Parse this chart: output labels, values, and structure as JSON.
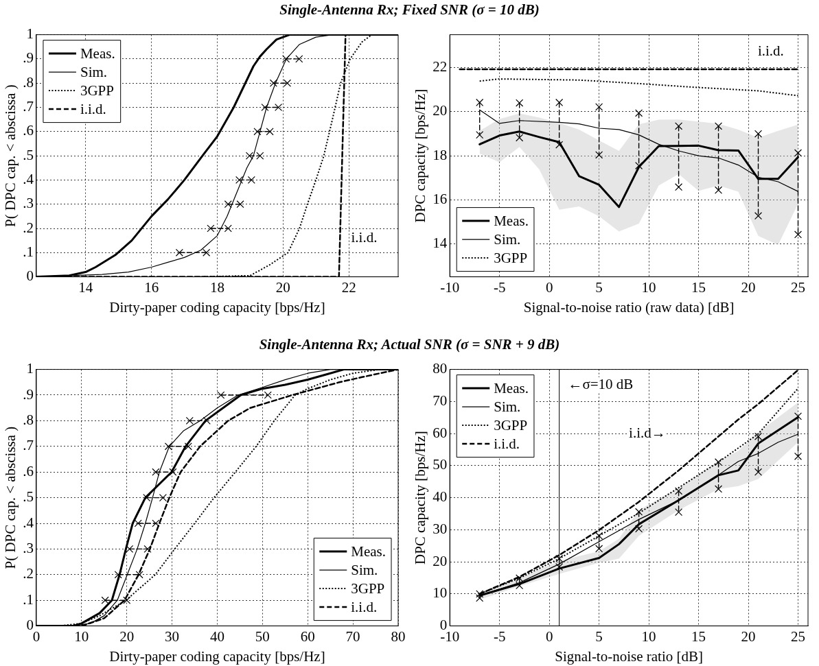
{
  "chart_data": [
    {
      "type": "line",
      "title": "Single-Antenna Rx; Fixed SNR (σ = 10 dB)",
      "xlabel": "Dirty-paper coding capacity [bps/Hz]",
      "ylabel": "P( DPC cap. < abscissa )",
      "xlim": [
        12.5,
        23.5
      ],
      "xticks": [
        14,
        16,
        18,
        20,
        22
      ],
      "ylim": [
        0,
        1
      ],
      "yticks": [
        0,
        {
          "value": 0.1,
          "label": ".1"
        },
        {
          "value": 0.2,
          "label": ".2"
        },
        {
          "value": 0.3,
          "label": ".3"
        },
        {
          "value": 0.4,
          "label": ".4"
        },
        {
          "value": 0.5,
          "label": ".5"
        },
        {
          "value": 0.6,
          "label": ".6"
        },
        {
          "value": 0.7,
          "label": ".7"
        },
        {
          "value": 0.8,
          "label": ".8"
        },
        {
          "value": 0.9,
          "label": ".9"
        },
        1
      ],
      "grid": true,
      "legend": "top left",
      "annotations": [
        "i.i.d."
      ],
      "series": [
        {
          "name": "Meas.",
          "color": "#000000",
          "line_style": "solid",
          "x": [
            12.5,
            13.5,
            14,
            14.3,
            14.9,
            15.4,
            16,
            16.5,
            17,
            17.55,
            18,
            18.5,
            19.1,
            19.3,
            19.5,
            19.8,
            20.2,
            23.5
          ],
          "values": [
            0,
            0.005,
            0.02,
            0.04,
            0.09,
            0.15,
            0.25,
            0.32,
            0.4,
            0.5,
            0.58,
            0.7,
            0.87,
            0.91,
            0.94,
            0.98,
            1,
            1
          ]
        },
        {
          "name": "Sim.",
          "color": "#000000",
          "line_style": "solid",
          "x": [
            12.5,
            14.5,
            15.3,
            16,
            16.5,
            17,
            17.5,
            18,
            18.3,
            18.6,
            18.9,
            19.1,
            19.3,
            19.5,
            19.77,
            20.1,
            20.5,
            21,
            21.5,
            23.5
          ],
          "values": [
            0,
            0.01,
            0.02,
            0.04,
            0.06,
            0.08,
            0.11,
            0.17,
            0.25,
            0.35,
            0.45,
            0.5,
            0.6,
            0.7,
            0.8,
            0.9,
            0.96,
            0.99,
            1,
            1
          ]
        },
        {
          "name": "3GPP",
          "color": "#000000",
          "line_style": "dotted",
          "x": [
            17.5,
            19,
            19.6,
            20.15,
            20.5,
            20.74,
            21,
            21.24,
            21.5,
            21.75,
            22.04,
            22.4,
            22.7,
            23.5
          ],
          "values": [
            0,
            0.005,
            0.05,
            0.1,
            0.2,
            0.3,
            0.4,
            0.5,
            0.65,
            0.8,
            0.9,
            0.97,
            1,
            1
          ]
        },
        {
          "name": "i.i.d.",
          "color": "#000000",
          "line_style": "dashed",
          "x": [
            12.5,
            21.7,
            21.9,
            23.5
          ],
          "values": [
            0,
            0,
            1,
            1
          ]
        },
        {
          "color": "#000000",
          "line_style": "dashed",
          "marker": "cross",
          "x": [
            16.85,
            17.67
          ],
          "values": [
            0.1,
            0.1
          ]
        },
        {
          "color": "#000000",
          "line_style": "dashed",
          "marker": "cross",
          "x": [
            17.8,
            18.33
          ],
          "values": [
            0.2,
            0.2
          ]
        },
        {
          "color": "#000000",
          "line_style": "dashed",
          "marker": "cross",
          "x": [
            18.33,
            18.7
          ],
          "values": [
            0.3,
            0.3
          ]
        },
        {
          "color": "#000000",
          "line_style": "dashed",
          "marker": "cross",
          "x": [
            18.67,
            19.04
          ],
          "values": [
            0.4,
            0.4
          ]
        },
        {
          "color": "#000000",
          "line_style": "dashed",
          "marker": "cross",
          "x": [
            18.98,
            19.3
          ],
          "values": [
            0.5,
            0.5
          ]
        },
        {
          "color": "#000000",
          "line_style": "dashed",
          "marker": "cross",
          "x": [
            19.22,
            19.6
          ],
          "values": [
            0.6,
            0.6
          ]
        },
        {
          "color": "#000000",
          "line_style": "dashed",
          "marker": "cross",
          "x": [
            19.45,
            19.86
          ],
          "values": [
            0.7,
            0.7
          ]
        },
        {
          "color": "#000000",
          "line_style": "dashed",
          "marker": "cross",
          "x": [
            19.71,
            20.13
          ],
          "values": [
            0.8,
            0.8
          ]
        },
        {
          "color": "#000000",
          "line_style": "dashed",
          "marker": "cross",
          "x": [
            20.09,
            20.49
          ],
          "values": [
            0.9,
            0.9
          ]
        }
      ]
    },
    {
      "type": "line",
      "xlabel": "Signal-to-noise ratio (raw data) [dB]",
      "ylabel": "DPC capacity [bps/Hz]",
      "xlim": [
        -10,
        26
      ],
      "xticks": [
        -10,
        -5,
        0,
        5,
        10,
        15,
        20,
        25
      ],
      "ylim": [
        12.5,
        23.5
      ],
      "yticks": [
        14,
        16,
        18,
        20,
        22
      ],
      "grid": true,
      "legend": "bottom left",
      "annotations": [
        "i.i.d."
      ],
      "series": [
        {
          "name": "Meas.",
          "color": "#000000",
          "line_style": "solid",
          "x": [
            -7,
            -5,
            -3,
            -1,
            1,
            3,
            5,
            7,
            9,
            11,
            13,
            15,
            17,
            19,
            21,
            23,
            25
          ],
          "values": [
            18.52,
            18.92,
            19.1,
            18.85,
            18.62,
            17.07,
            16.68,
            15.67,
            17.49,
            18.44,
            18.45,
            18.46,
            18.25,
            18.24,
            16.95,
            16.95,
            17.94
          ],
          "upper": [
            19.13,
            19.67,
            19.92,
            19.73,
            19.49,
            19.19,
            18.7,
            18.22,
            19.43,
            19.64,
            19.65,
            19.55,
            19.45,
            19.19,
            18.82,
            19.13,
            19.41
          ],
          "lower": [
            18.1,
            17.71,
            18.4,
            17.37,
            15.55,
            15.7,
            15.25,
            14.56,
            14.92,
            16.65,
            17.17,
            16.41,
            16.65,
            16.37,
            14.36,
            13.95,
            15.82
          ]
        },
        {
          "name": "Sim.",
          "color": "#000000",
          "line_style": "solid",
          "x": [
            -7,
            -5,
            -3,
            1,
            3,
            5,
            7,
            9,
            11,
            13,
            15,
            17,
            19,
            21,
            23,
            25
          ],
          "values": [
            20.08,
            19.47,
            19.6,
            19.52,
            19.45,
            19.25,
            19.19,
            18.95,
            18.52,
            18.22,
            18.0,
            17.9,
            17.58,
            17.03,
            16.82,
            16.38
          ]
        },
        {
          "name": "3GPP",
          "color": "#000000",
          "line_style": "dotted",
          "x": [
            -7,
            -5,
            3,
            9,
            15,
            21,
            25
          ],
          "values": [
            21.39,
            21.49,
            21.44,
            21.28,
            21.1,
            20.95,
            20.73
          ]
        },
        {
          "color": "#000000",
          "line_style": "dashed",
          "x": [
            -9,
            25
          ],
          "values": [
            21.93,
            21.93
          ]
        },
        {
          "color": "#000000",
          "line_style": "dashed",
          "marker": "cross",
          "x": [
            -7,
            -7
          ],
          "values": [
            20.42,
            18.95
          ]
        },
        {
          "color": "#000000",
          "line_style": "dashed",
          "marker": "cross",
          "x": [
            -3,
            -3
          ],
          "values": [
            20.4,
            18.82
          ]
        },
        {
          "color": "#000000",
          "line_style": "dashed",
          "marker": "cross",
          "x": [
            1,
            1
          ],
          "values": [
            20.42,
            18.5
          ]
        },
        {
          "color": "#000000",
          "line_style": "dashed",
          "marker": "cross",
          "x": [
            5,
            5
          ],
          "values": [
            20.22,
            18.04
          ]
        },
        {
          "color": "#000000",
          "line_style": "dashed",
          "marker": "cross",
          "x": [
            9,
            9
          ],
          "values": [
            19.94,
            17.55
          ]
        },
        {
          "color": "#000000",
          "line_style": "dashed",
          "marker": "cross",
          "x": [
            13,
            13
          ],
          "values": [
            19.35,
            16.58
          ]
        },
        {
          "color": "#000000",
          "line_style": "dashed",
          "marker": "cross",
          "x": [
            17,
            17
          ],
          "values": [
            19.35,
            16.44
          ]
        },
        {
          "color": "#000000",
          "line_style": "dashed",
          "marker": "cross",
          "x": [
            21,
            21
          ],
          "values": [
            19.0,
            15.27
          ]
        },
        {
          "color": "#000000",
          "line_style": "dashed",
          "marker": "cross",
          "x": [
            25,
            25
          ],
          "values": [
            18.13,
            14.42
          ]
        }
      ]
    },
    {
      "type": "line",
      "title": "Single-Antenna Rx; Actual SNR (σ = SNR + 9 dB)",
      "xlabel": "Dirty-paper coding capacity [bps/Hz]",
      "ylabel": "P( DPC cap. < abscissa )",
      "xlim": [
        0,
        80
      ],
      "xticks": [
        0,
        10,
        20,
        30,
        40,
        50,
        60,
        70,
        80
      ],
      "ylim": [
        0,
        1
      ],
      "yticks": [
        0,
        {
          "value": 0.1,
          "label": ".1"
        },
        {
          "value": 0.2,
          "label": ".2"
        },
        {
          "value": 0.3,
          "label": ".3"
        },
        {
          "value": 0.4,
          "label": ".4"
        },
        {
          "value": 0.5,
          "label": ".5"
        },
        {
          "value": 0.6,
          "label": ".6"
        },
        {
          "value": 0.7,
          "label": ".7"
        },
        {
          "value": 0.8,
          "label": ".8"
        },
        {
          "value": 0.9,
          "label": ".9"
        },
        1
      ],
      "grid": true,
      "legend": "bottom right",
      "series": [
        {
          "name": "Meas.",
          "color": "#000000",
          "line_style": "solid",
          "x": [
            0,
            8,
            10,
            14,
            16.7,
            18.4,
            19.8,
            21.3,
            24.1,
            29.9,
            33,
            37.4,
            40.5,
            45.2,
            50,
            55,
            60,
            65,
            68,
            80
          ],
          "values": [
            0,
            0,
            0.01,
            0.05,
            0.1,
            0.2,
            0.3,
            0.4,
            0.5,
            0.6,
            0.7,
            0.8,
            0.84,
            0.9,
            0.925,
            0.94,
            0.96,
            0.985,
            1,
            1
          ]
        },
        {
          "name": "Sim.",
          "color": "#000000",
          "line_style": "solid",
          "x": [
            0,
            8,
            12,
            15,
            17.9,
            20.1,
            22.3,
            24.1,
            25.7,
            27.2,
            29.4,
            32.5,
            36.2,
            40,
            44.6,
            50,
            55,
            60,
            65,
            80
          ],
          "values": [
            0,
            0,
            0.01,
            0.04,
            0.1,
            0.2,
            0.3,
            0.4,
            0.5,
            0.6,
            0.7,
            0.76,
            0.8,
            0.85,
            0.9,
            0.93,
            0.96,
            0.985,
            1,
            1
          ]
        },
        {
          "name": "3GPP",
          "color": "#000000",
          "line_style": "dotted",
          "x": [
            0,
            5,
            10,
            14,
            19.8,
            26.3,
            30.6,
            35,
            39.3,
            44,
            48.6,
            52.6,
            57.2,
            60,
            65,
            70,
            76,
            80
          ],
          "values": [
            0,
            0,
            0.01,
            0.04,
            0.1,
            0.2,
            0.3,
            0.4,
            0.5,
            0.6,
            0.7,
            0.8,
            0.9,
            0.925,
            0.96,
            0.985,
            1,
            1
          ]
        },
        {
          "name": "i.i.d.",
          "color": "#000000",
          "line_style": "dashed",
          "x": [
            0,
            10,
            15,
            19.5,
            22.6,
            25.1,
            27.2,
            29.4,
            31.9,
            36.2,
            42.4,
            47.3,
            56.6,
            67,
            72,
            80
          ],
          "values": [
            0,
            0,
            0.03,
            0.1,
            0.2,
            0.3,
            0.4,
            0.5,
            0.6,
            0.7,
            0.8,
            0.85,
            0.9,
            0.95,
            0.97,
            1
          ]
        },
        {
          "color": "#000000",
          "line_style": "dashed",
          "marker": "cross",
          "x": [
            15.2,
            20.0
          ],
          "values": [
            0.1,
            0.1
          ]
        },
        {
          "color": "#000000",
          "line_style": "dashed",
          "marker": "cross",
          "x": [
            18.1,
            22.8
          ],
          "values": [
            0.2,
            0.2
          ]
        },
        {
          "color": "#000000",
          "line_style": "dashed",
          "marker": "cross",
          "x": [
            20.6,
            24.6
          ],
          "values": [
            0.3,
            0.3
          ]
        },
        {
          "color": "#000000",
          "line_style": "dashed",
          "marker": "cross",
          "x": [
            22.5,
            26.4
          ],
          "values": [
            0.4,
            0.4
          ]
        },
        {
          "color": "#000000",
          "line_style": "dashed",
          "marker": "cross",
          "x": [
            24.4,
            28.0
          ],
          "values": [
            0.5,
            0.5
          ]
        },
        {
          "color": "#000000",
          "line_style": "dashed",
          "marker": "cross",
          "x": [
            26.4,
            30.2
          ],
          "values": [
            0.6,
            0.6
          ]
        },
        {
          "color": "#000000",
          "line_style": "dashed",
          "marker": "cross",
          "x": [
            29.2,
            33.6
          ],
          "values": [
            0.7,
            0.7
          ]
        },
        {
          "color": "#000000",
          "line_style": "dashed",
          "marker": "cross",
          "x": [
            33.9,
            37.7
          ],
          "values": [
            0.8,
            0.8
          ]
        },
        {
          "color": "#000000",
          "line_style": "dashed",
          "marker": "cross",
          "x": [
            40.8,
            51.2
          ],
          "values": [
            0.9,
            0.9
          ]
        }
      ]
    },
    {
      "type": "line",
      "xlabel": "Signal-to-noise ratio [dB]",
      "ylabel": "DPC capacity [bps/Hz]",
      "xlim": [
        -10,
        26
      ],
      "xticks": [
        -10,
        -5,
        0,
        5,
        10,
        15,
        20,
        25
      ],
      "ylim": [
        0,
        80
      ],
      "yticks": [
        0,
        10,
        20,
        30,
        40,
        50,
        60,
        70,
        80
      ],
      "grid": true,
      "legend": "top left",
      "ref_lines": [
        {
          "axis": "x",
          "value": 1
        }
      ],
      "annotations": [
        "←σ=10 dB",
        "i.i.d→"
      ],
      "series": [
        {
          "name": "Meas.",
          "color": "#000000",
          "line_style": "solid",
          "x": [
            -7,
            -3,
            1,
            5,
            7,
            9,
            13,
            17,
            19,
            21,
            25
          ],
          "values": [
            9.5,
            13.1,
            17.9,
            21.2,
            25.5,
            31.7,
            39.2,
            47,
            48.5,
            56.9,
            65.1
          ],
          "upper": [
            10.4,
            14.9,
            20.3,
            23.3,
            27.2,
            36.1,
            43.1,
            51.5,
            54.6,
            60.4,
            69.7
          ],
          "lower": [
            8.2,
            12.4,
            16.2,
            19.7,
            21,
            28.1,
            36.1,
            42.7,
            43.6,
            45.8,
            57.3
          ]
        },
        {
          "name": "Sim.",
          "color": "#000000",
          "line_style": "solid",
          "x": [
            -7,
            -3,
            1,
            5,
            9,
            13,
            17,
            19,
            21,
            23,
            25
          ],
          "values": [
            9.5,
            13.5,
            19.3,
            26.3,
            33.2,
            39.2,
            47.1,
            51.3,
            53.8,
            57.3,
            59.8
          ]
        },
        {
          "name": "3GPP",
          "color": "#000000",
          "line_style": "dotted",
          "x": [
            -7,
            -3,
            1,
            5,
            9,
            13,
            17,
            21,
            25
          ],
          "values": [
            10,
            14.9,
            21,
            28.1,
            35.2,
            43.1,
            51.1,
            59.9,
            74.1
          ]
        },
        {
          "name": "i.i.d.",
          "color": "#000000",
          "line_style": "dashed",
          "x": [
            -7,
            -3,
            1,
            5,
            9,
            13,
            17,
            19,
            21,
            25
          ],
          "values": [
            10,
            15.3,
            22.1,
            29.9,
            38.7,
            48.5,
            59.1,
            64.4,
            69.2,
            79.8
          ]
        },
        {
          "color": "#000000",
          "line_style": "dashed",
          "marker": "cross",
          "x": [
            -7,
            -7
          ],
          "values": [
            10.0,
            8.7
          ]
        },
        {
          "color": "#000000",
          "line_style": "dashed",
          "marker": "cross",
          "x": [
            -3,
            -3
          ],
          "values": [
            14.9,
            12.6
          ]
        },
        {
          "color": "#000000",
          "line_style": "dashed",
          "marker": "cross",
          "x": [
            1,
            1
          ],
          "values": [
            21.0,
            18.4
          ]
        },
        {
          "color": "#000000",
          "line_style": "dashed",
          "marker": "cross",
          "x": [
            5,
            5
          ],
          "values": [
            28.1,
            24.1
          ]
        },
        {
          "color": "#000000",
          "line_style": "dashed",
          "marker": "cross",
          "x": [
            9,
            9
          ],
          "values": [
            35.6,
            30.3
          ]
        },
        {
          "color": "#000000",
          "line_style": "dashed",
          "marker": "cross",
          "x": [
            13,
            13
          ],
          "values": [
            42.1,
            35.5
          ]
        },
        {
          "color": "#000000",
          "line_style": "dashed",
          "marker": "cross",
          "x": [
            17,
            17
          ],
          "values": [
            51.1,
            42.7
          ]
        },
        {
          "color": "#000000",
          "line_style": "dashed",
          "marker": "cross",
          "x": [
            21,
            21
          ],
          "values": [
            59.1,
            48.0
          ]
        },
        {
          "color": "#000000",
          "line_style": "dashed",
          "marker": "cross",
          "x": [
            25,
            25
          ],
          "values": [
            65.4,
            52.9
          ]
        }
      ]
    }
  ]
}
